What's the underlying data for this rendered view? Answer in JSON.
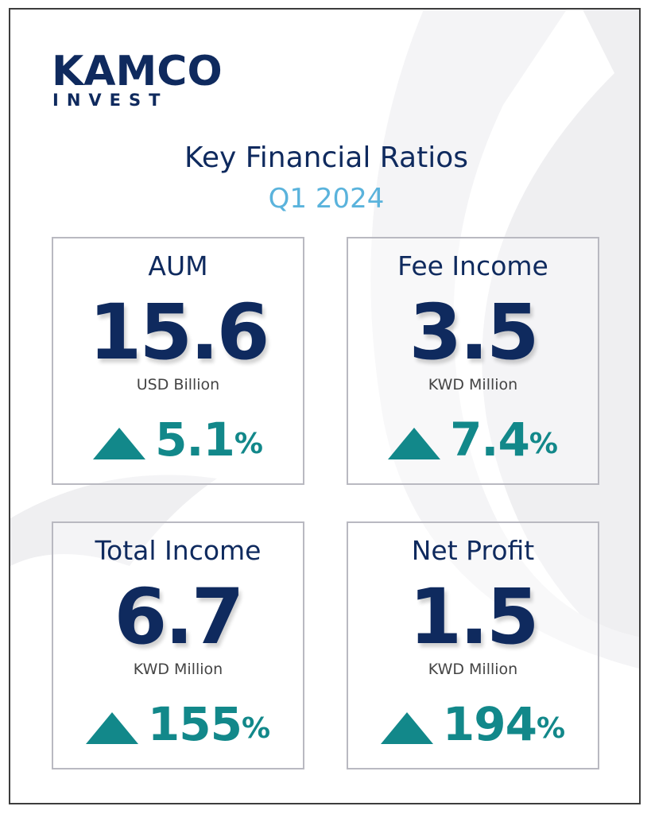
{
  "brand": {
    "name": "KAMCO",
    "sub": "INVEST",
    "color": "#0f2a5e"
  },
  "header": {
    "title": "Key Financial Ratios",
    "period": "Q1 2024"
  },
  "colors": {
    "navy": "#0f2a5e",
    "light_blue": "#5ab3dc",
    "teal": "#12888a",
    "background_arc": "#efeff1"
  },
  "metrics": [
    {
      "label": "AUM",
      "value": "15.6",
      "unit": "USD Billion",
      "change": "5.1",
      "change_suffix": "%",
      "direction": "up-triangle-icon"
    },
    {
      "label": "Fee Income",
      "value": "3.5",
      "unit": "KWD Million",
      "change": "7.4",
      "change_suffix": "%",
      "direction": "up-triangle-icon"
    },
    {
      "label": "Total Income",
      "value": "6.7",
      "unit": "KWD Million",
      "change": "155",
      "change_suffix": "%",
      "direction": "up-triangle-icon"
    },
    {
      "label": "Net Profit",
      "value": "1.5",
      "unit": "KWD Million",
      "change": "194",
      "change_suffix": "%",
      "direction": "up-triangle-icon"
    }
  ]
}
